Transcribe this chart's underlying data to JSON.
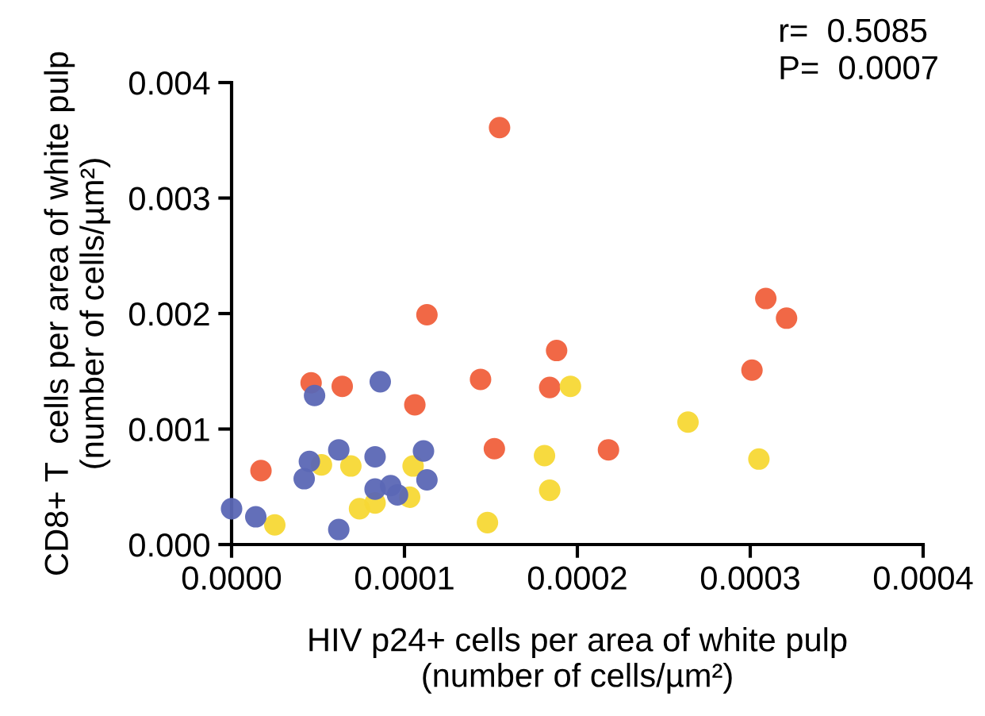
{
  "chart_data": {
    "type": "scatter",
    "xlabel": "HIV p24+ cells per area of white pulp\n(number of cells/µm²)",
    "ylabel": "CD8+ T  cells per area of white pulp\n(number of cells/µm²)",
    "annotations": [
      "r=  0.5085",
      "P=  0.0007"
    ],
    "xlim": [
      0,
      0.0004
    ],
    "ylim": [
      0,
      0.004
    ],
    "xticks": [
      {
        "value": 0,
        "label": "0.0000"
      },
      {
        "value": 0.0001,
        "label": "0.0001"
      },
      {
        "value": 0.0002,
        "label": "0.0002"
      },
      {
        "value": 0.0003,
        "label": "0.0003"
      },
      {
        "value": 0.0004,
        "label": "0.0004"
      }
    ],
    "yticks": [
      {
        "value": 0,
        "label": "0.000"
      },
      {
        "value": 0.001,
        "label": "0.001"
      },
      {
        "value": 0.002,
        "label": "0.002"
      },
      {
        "value": 0.003,
        "label": "0.003"
      },
      {
        "value": 0.004,
        "label": "0.004"
      }
    ],
    "grid": false,
    "legend": false,
    "marker": "circle",
    "series": [
      {
        "color": "#f0603c",
        "x": [
          1.7e-05,
          4.6e-05,
          6.4e-05,
          0.000113,
          0.000106,
          0.000155,
          0.000144,
          0.000152,
          0.000188,
          0.000184,
          0.000218,
          0.000309,
          0.000321,
          0.000301
        ],
        "values": [
          0.00064,
          0.0014,
          0.00137,
          0.00199,
          0.00121,
          0.00361,
          0.00143,
          0.00083,
          0.00168,
          0.00136,
          0.00082,
          0.00213,
          0.00196,
          0.00151
        ]
      },
      {
        "color": "#f7d835",
        "x": [
          2.5e-05,
          5.2e-05,
          6.9e-05,
          7.4e-05,
          8.3e-05,
          0.000103,
          0.000105,
          0.000148,
          0.000181,
          0.000184,
          0.000196,
          0.000264,
          0.000305
        ],
        "values": [
          0.00017,
          0.00069,
          0.00068,
          0.00031,
          0.00036,
          0.00041,
          0.00068,
          0.00019,
          0.00077,
          0.00047,
          0.00137,
          0.00106,
          0.00074
        ]
      },
      {
        "color": "#5b67b5",
        "x": [
          0.0,
          1.4e-05,
          4.2e-05,
          4.5e-05,
          4.8e-05,
          6.2e-05,
          6.2e-05,
          8.6e-05,
          8.3e-05,
          8.3e-05,
          9.2e-05,
          9.6e-05,
          0.000111,
          0.000113
        ],
        "values": [
          0.00031,
          0.00024,
          0.00057,
          0.00072,
          0.00129,
          0.00082,
          0.00013,
          0.00141,
          0.00076,
          0.00048,
          0.00051,
          0.00043,
          0.00081,
          0.00056
        ]
      }
    ]
  }
}
